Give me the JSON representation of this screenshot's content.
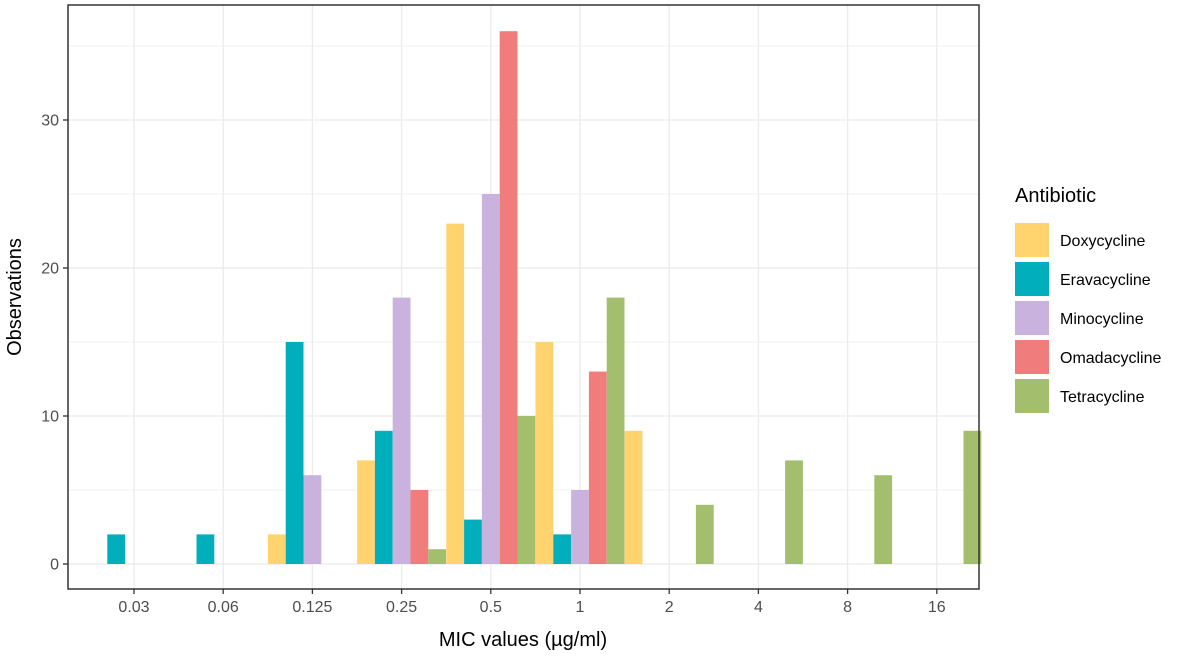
{
  "chart_data": {
    "type": "bar",
    "xlabel": "MIC values (µg/ml)",
    "ylabel": "Observations",
    "categories": [
      "0.03",
      "0.06",
      "0.125",
      "0.25",
      "0.5",
      "1",
      "2",
      "4",
      "8",
      "16"
    ],
    "ylim": [
      0,
      37
    ],
    "yticks": [
      0,
      10,
      20,
      30
    ],
    "grid": true,
    "legend": {
      "title": "Antibiotic",
      "position": "right"
    },
    "series": [
      {
        "name": "Doxycycline",
        "color": "#FFD36E",
        "values": [
          0,
          0,
          2,
          7,
          23,
          15,
          9,
          0,
          0,
          0
        ]
      },
      {
        "name": "Eravacycline",
        "color": "#00AFBB",
        "values": [
          2,
          2,
          15,
          9,
          3,
          2,
          0,
          0,
          0,
          0
        ]
      },
      {
        "name": "Minocycline",
        "color": "#C9B3DE",
        "values": [
          0,
          0,
          6,
          18,
          25,
          5,
          0,
          0,
          0,
          0
        ]
      },
      {
        "name": "Omadacycline",
        "color": "#F07C7C",
        "values": [
          0,
          0,
          0,
          5,
          36,
          13,
          0,
          0,
          0,
          0
        ]
      },
      {
        "name": "Tetracycline",
        "color": "#A3BF6E",
        "values": [
          0,
          0,
          0,
          1,
          10,
          18,
          4,
          7,
          6,
          9
        ]
      }
    ]
  }
}
